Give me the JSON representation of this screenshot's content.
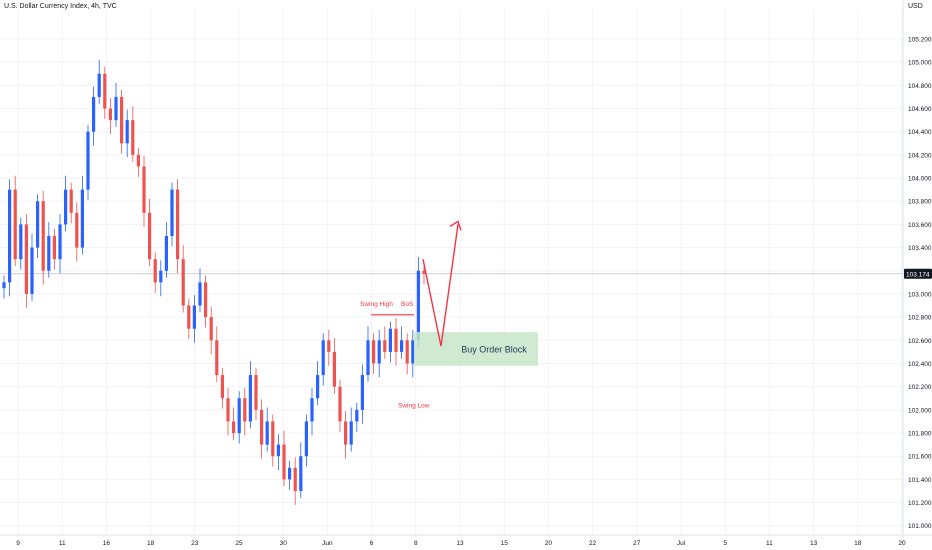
{
  "header": {
    "title": "U.S. Dollar Currency Index, 4h, TVC",
    "currency": "USD"
  },
  "price_axis": {
    "labels": [
      "105.200",
      "105.000",
      "104.800",
      "104.600",
      "104.400",
      "104.200",
      "104.000",
      "103.800",
      "103.600",
      "103.400",
      "103.200",
      "103.000",
      "102.800",
      "102.600",
      "102.400",
      "102.200",
      "102.000",
      "101.800",
      "101.600",
      "101.400",
      "101.200",
      "101.000"
    ],
    "last_price": "103.174"
  },
  "time_axis": {
    "labels": [
      "9",
      "11",
      "16",
      "18",
      "23",
      "25",
      "30",
      "Jun",
      "6",
      "8",
      "13",
      "15",
      "20",
      "22",
      "27",
      "Jul",
      "5",
      "11",
      "13",
      "18",
      "20"
    ]
  },
  "annotations": {
    "swing_high": "Swing High",
    "bos": "BoS",
    "swing_low": "Swing Low",
    "order_block": "Buy Order Block"
  },
  "colors": {
    "up": "#2962ff",
    "down": "#ef5350",
    "grid": "#f0f3fa",
    "annotation": "#f23645",
    "order_block_fill": "#c8e6c9",
    "order_block_text": "#1b3a57",
    "axis_text": "#131722",
    "price_badge_bg": "#131722"
  },
  "chart_data": {
    "type": "candlestick",
    "ylim": [
      100.92,
      105.45
    ],
    "close_series": [
      103.1,
      103.9,
      103.3,
      103.6,
      103.0,
      103.4,
      103.8,
      103.2,
      103.5,
      103.3,
      103.6,
      103.9,
      103.7,
      103.4,
      103.9,
      104.4,
      104.7,
      104.9,
      104.6,
      104.5,
      104.7,
      104.3,
      104.5,
      104.2,
      104.1,
      103.7,
      103.3,
      103.1,
      103.2,
      103.5,
      103.9,
      103.3,
      102.9,
      102.7,
      102.9,
      103.1,
      102.8,
      102.6,
      102.3,
      102.1,
      101.9,
      101.8,
      102.1,
      101.9,
      102.3,
      102.0,
      101.7,
      101.9,
      101.6,
      101.7,
      101.4,
      101.5,
      101.3,
      101.6,
      101.9,
      102.1,
      102.3,
      102.6,
      102.5,
      102.2,
      101.9,
      101.7,
      101.9,
      102.0,
      102.3,
      102.6,
      102.4,
      102.6,
      102.5,
      102.7,
      102.5,
      102.6,
      102.4,
      102.6,
      103.2,
      103.174
    ],
    "swing_high_level": 102.82,
    "swing_low_level": 102.15,
    "order_block_range": [
      102.38,
      102.67
    ],
    "projected_path": [
      103.3,
      102.55,
      103.6
    ]
  }
}
